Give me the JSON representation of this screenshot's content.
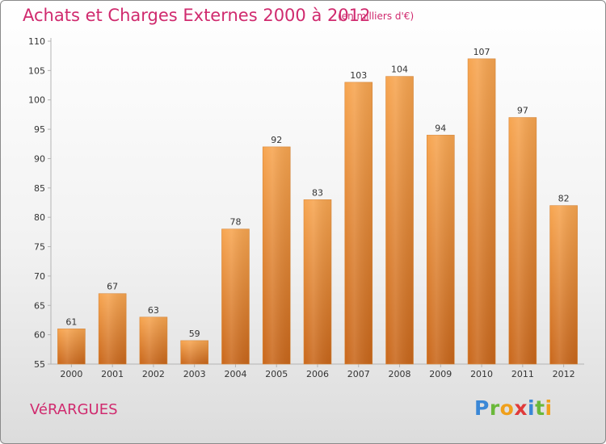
{
  "title": "Achats et Charges Externes 2000 à 2012",
  "subtitle": "(en milliers d'€)",
  "commune": "VéRARGUES",
  "logo": {
    "letters": [
      {
        "char": "P",
        "color": "#3a87d6"
      },
      {
        "char": "r",
        "color": "#6ab83a"
      },
      {
        "char": "o",
        "color": "#f0a01c"
      },
      {
        "char": "x",
        "color": "#e03a3a"
      },
      {
        "char": "i",
        "color": "#3a87d6"
      },
      {
        "char": "t",
        "color": "#6ab83a"
      },
      {
        "char": "i",
        "color": "#f0a01c"
      }
    ]
  },
  "chart_data": {
    "type": "bar",
    "categories": [
      "2000",
      "2001",
      "2002",
      "2003",
      "2004",
      "2005",
      "2006",
      "2007",
      "2008",
      "2009",
      "2010",
      "2011",
      "2012"
    ],
    "values": [
      61,
      67,
      63,
      59,
      78,
      92,
      83,
      103,
      104,
      94,
      107,
      97,
      82
    ],
    "title": "Achats et Charges Externes 2000 à 2012",
    "ylim": [
      55,
      110
    ],
    "yticks": [
      55,
      60,
      65,
      70,
      75,
      80,
      85,
      90,
      95,
      100,
      105,
      110
    ],
    "grid": false,
    "bar_color_top": "#f7a550",
    "bar_color_bottom": "#c9671b",
    "axis_color": "#b3b3b3"
  }
}
